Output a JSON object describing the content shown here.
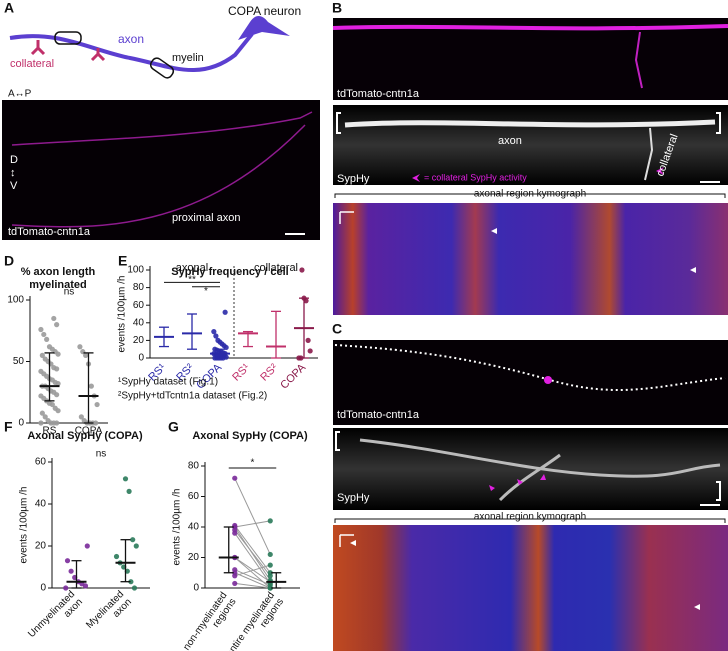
{
  "panel_labels": [
    "A",
    "B",
    "C",
    "D",
    "E",
    "F",
    "G"
  ],
  "schematic": {
    "neuron": "COPA neuron",
    "axon": "axon",
    "myelin": "myelin",
    "collateral": "collateral"
  },
  "panel_a_image": {
    "orientation": "A↔P",
    "dv": [
      "D",
      "↕",
      "V"
    ],
    "stain": "tdTomato-cntn1a",
    "region": "proximal axon"
  },
  "panel_b": {
    "stain_top": "tdTomato-cntn1a",
    "axon": "axon",
    "stain_bottom": "SypHy",
    "collateral": "collateral",
    "legend": "= collateral SypHy activity",
    "kymograph": "axonal region kymograph"
  },
  "panel_c": {
    "stain_top": "tdTomato-cntn1a",
    "stain_bottom": "SypHy",
    "kymograph": "axonal region kymograph"
  },
  "chart_data": [
    {
      "type": "dot",
      "title": "% axon length myelinated",
      "categories": [
        "RS",
        "COPA"
      ],
      "colors": [
        "#9a9a9a",
        "#9a9a9a"
      ],
      "errorbar_color": "#111111",
      "points": [
        [
          0,
          0,
          0,
          0,
          2,
          5,
          8,
          10,
          12,
          15,
          16,
          18,
          20,
          22,
          23,
          25,
          26,
          28,
          30,
          30,
          32,
          33,
          35,
          36,
          38,
          40,
          42,
          44,
          45,
          48,
          50,
          52,
          55,
          56,
          58,
          60,
          62,
          68,
          72,
          76,
          80,
          85
        ],
        [
          0,
          0,
          0,
          0,
          2,
          5,
          15,
          22,
          30,
          48,
          55,
          58,
          62
        ]
      ],
      "center": [
        30,
        22
      ],
      "error_low": [
        18,
        0
      ],
      "error_high": [
        57,
        57
      ],
      "ylim": [
        0,
        100
      ],
      "yticks": [
        0,
        50,
        100
      ],
      "annotations": [
        "ns"
      ]
    },
    {
      "type": "dot",
      "title": "SypHy frequency / cell",
      "ylabel": "events /100µm /h",
      "groups": [
        "axonal",
        "collateral"
      ],
      "categories": [
        "RS¹",
        "RS²",
        "COPA",
        "RS¹",
        "RS²",
        "COPA"
      ],
      "colors": [
        "#2a2aa8",
        "#2a2aa8",
        "#2a2aa8",
        "#c0306a",
        "#c0306a",
        "#8a1a4a"
      ],
      "points": [
        [],
        [],
        [
          0,
          0,
          0,
          0,
          0,
          1,
          2,
          2,
          3,
          3,
          4,
          5,
          5,
          6,
          7,
          8,
          9,
          10,
          12,
          14,
          16,
          18,
          20,
          25,
          30,
          52
        ],
        [],
        [],
        [
          0,
          0,
          8,
          20,
          65,
          68,
          100
        ]
      ],
      "center": [
        24,
        28,
        5,
        28,
        13,
        34
      ],
      "error_low": [
        13,
        10,
        1,
        13,
        0,
        0
      ],
      "error_high": [
        35,
        50,
        10,
        30,
        53,
        68
      ],
      "ylim": [
        0,
        100
      ],
      "yticks": [
        0,
        20,
        40,
        60,
        80,
        100
      ],
      "annotations": [
        "**",
        "*"
      ],
      "footnotes": [
        "¹SypHy dataset (Fig.1)",
        "²SypHy+tdTcntn1a dataset (Fig.2)"
      ]
    },
    {
      "type": "dot",
      "title": "Axonal SypHy (COPA)",
      "ylabel": "events /100µm /h",
      "categories": [
        "Unmyelinated axon",
        "Myelinated axon"
      ],
      "colors": [
        "#7a2a9a",
        "#2a7a5a"
      ],
      "errorbar_color": "#111111",
      "points": [
        [
          0,
          1,
          2,
          3,
          5,
          8,
          13,
          20
        ],
        [
          0,
          3,
          8,
          10,
          12,
          15,
          20,
          23,
          46,
          52
        ]
      ],
      "center": [
        3,
        12
      ],
      "error_low": [
        0,
        3
      ],
      "error_high": [
        13,
        23
      ],
      "ylim": [
        0,
        60
      ],
      "yticks": [
        0,
        20,
        40,
        60
      ],
      "annotations": [
        "ns"
      ]
    },
    {
      "type": "paired",
      "title": "Axonal SypHy (COPA)",
      "ylabel": "events /100µm /h",
      "categories": [
        "entire non-myelinated regions",
        "entire myelinated regions"
      ],
      "colors": [
        "#7a2a9a",
        "#2a7a5a"
      ],
      "errorbar_color": "#111111",
      "points": [
        [
          72,
          41,
          40,
          40,
          38,
          36,
          20,
          20,
          12,
          10,
          8,
          3
        ],
        [
          22,
          10,
          44,
          5,
          8,
          3,
          4,
          0,
          2,
          0,
          15,
          0
        ]
      ],
      "center": [
        20,
        4
      ],
      "error_low": [
        10,
        0
      ],
      "error_high": [
        40,
        10
      ],
      "ylim": [
        0,
        80
      ],
      "yticks": [
        0,
        20,
        40,
        60,
        80
      ],
      "annotations": [
        "*"
      ]
    }
  ]
}
